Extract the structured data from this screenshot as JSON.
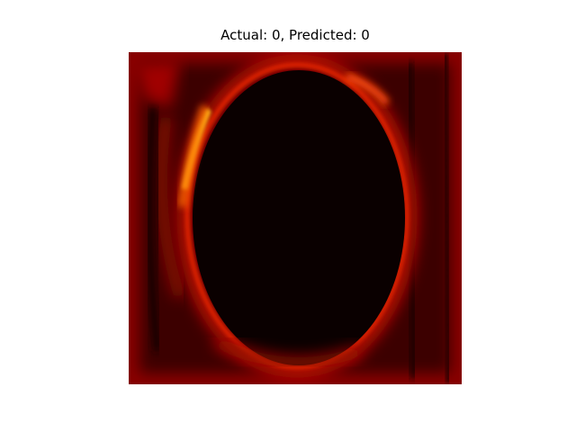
{
  "chart_data": {
    "type": "image",
    "title": "Actual: 0, Predicted: 0"
  }
}
